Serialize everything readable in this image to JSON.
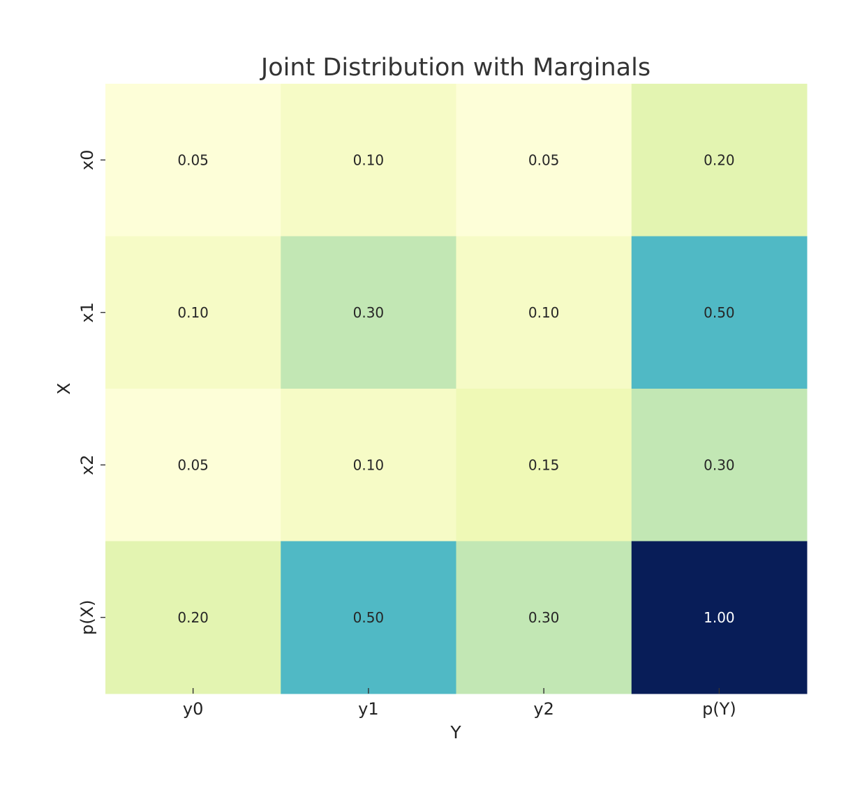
{
  "chart_data": {
    "type": "heatmap",
    "title": "Joint Distribution with Marginals",
    "xlabel": "Y",
    "ylabel": "X",
    "x_categories": [
      "y0",
      "y1",
      "y2",
      "p(Y)"
    ],
    "y_categories": [
      "x0",
      "x1",
      "x2",
      "p(X)"
    ],
    "values": [
      [
        0.05,
        0.1,
        0.05,
        0.2
      ],
      [
        0.1,
        0.3,
        0.1,
        0.5
      ],
      [
        0.05,
        0.1,
        0.15,
        0.3
      ],
      [
        0.2,
        0.5,
        0.3,
        1.0
      ]
    ],
    "labels": [
      [
        "0.05",
        "0.10",
        "0.05",
        "0.20"
      ],
      [
        "0.10",
        "0.30",
        "0.10",
        "0.50"
      ],
      [
        "0.05",
        "0.10",
        "0.15",
        "0.30"
      ],
      [
        "0.20",
        "0.50",
        "0.30",
        "1.00"
      ]
    ],
    "vmin": 0,
    "vmax": 1,
    "colorscale": "YlGnBu",
    "colorbar": false,
    "grid": false
  }
}
